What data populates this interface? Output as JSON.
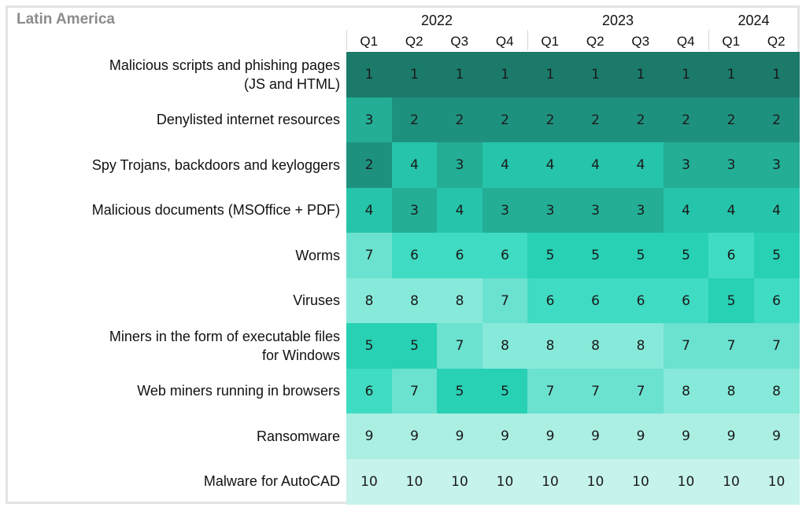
{
  "chart_data": {
    "type": "heatmap",
    "title": "Latin America",
    "years": [
      {
        "label": "2022",
        "quarters": 4
      },
      {
        "label": "2023",
        "quarters": 4
      },
      {
        "label": "2024",
        "quarters": 2
      }
    ],
    "columns": [
      "Q1",
      "Q2",
      "Q3",
      "Q4",
      "Q1",
      "Q2",
      "Q3",
      "Q4",
      "Q1",
      "Q2"
    ],
    "rows": [
      {
        "label": "Malicious scripts and phishing pages\n(JS and HTML)",
        "values": [
          1,
          1,
          1,
          1,
          1,
          1,
          1,
          1,
          1,
          1
        ]
      },
      {
        "label": "Denylisted internet resources",
        "values": [
          3,
          2,
          2,
          2,
          2,
          2,
          2,
          2,
          2,
          2
        ]
      },
      {
        "label": "Spy Trojans, backdoors and keyloggers",
        "values": [
          2,
          4,
          3,
          4,
          4,
          4,
          4,
          3,
          3,
          3
        ]
      },
      {
        "label": "Malicious documents (MSOffice + PDF)",
        "values": [
          4,
          3,
          4,
          3,
          3,
          3,
          3,
          4,
          4,
          4
        ]
      },
      {
        "label": "Worms",
        "values": [
          7,
          6,
          6,
          6,
          5,
          5,
          5,
          5,
          6,
          5
        ]
      },
      {
        "label": "Viruses",
        "values": [
          8,
          8,
          8,
          7,
          6,
          6,
          6,
          6,
          5,
          6
        ]
      },
      {
        "label": "Miners in the form of executable files\nfor Windows",
        "values": [
          5,
          5,
          7,
          8,
          8,
          8,
          8,
          7,
          7,
          7
        ]
      },
      {
        "label": "Web miners running in browsers",
        "values": [
          6,
          7,
          5,
          5,
          7,
          7,
          7,
          8,
          8,
          8
        ]
      },
      {
        "label": "Ransomware",
        "values": [
          9,
          9,
          9,
          9,
          9,
          9,
          9,
          9,
          9,
          9
        ]
      },
      {
        "label": "Malware for AutoCAD",
        "values": [
          10,
          10,
          10,
          10,
          10,
          10,
          10,
          10,
          10,
          10
        ]
      }
    ],
    "color_scale": {
      "1": "#1b7a6a",
      "2": "#1e917e",
      "3": "#23ae95",
      "4": "#26c4aa",
      "5": "#28d0b4",
      "6": "#3fdbc2",
      "7": "#6be1cf",
      "8": "#87e9d9",
      "9": "#abefe3",
      "10": "#c6f3ec"
    },
    "xlabel": "",
    "ylabel": "",
    "legend": "none",
    "grid": false
  }
}
